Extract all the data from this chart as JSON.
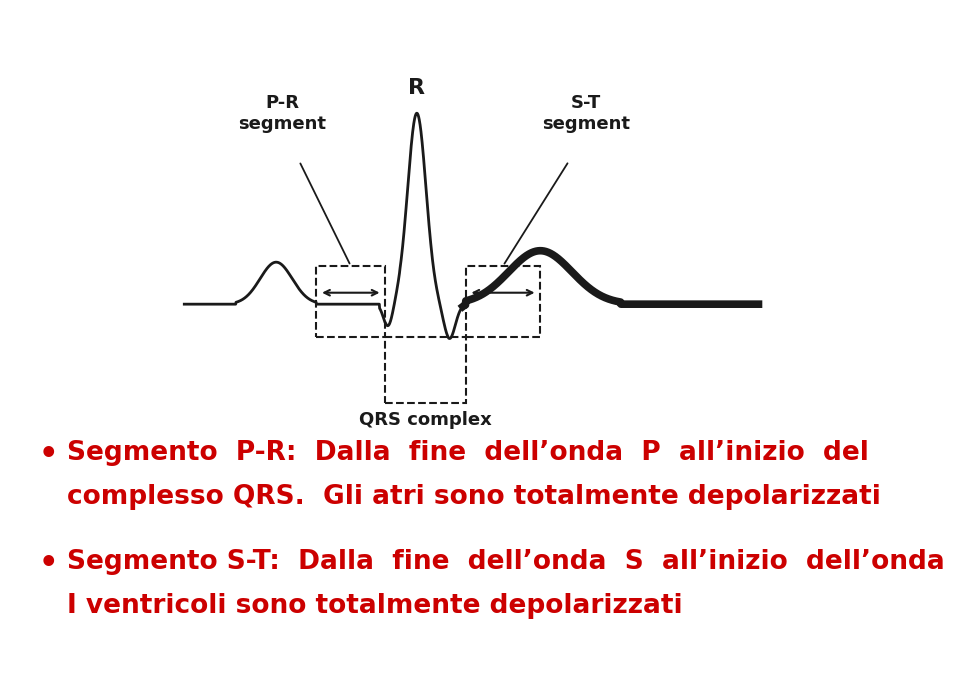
{
  "bg_color": "#ffffff",
  "ecg_color": "#1a1a1a",
  "text_color_red": "#cc0000",
  "line1": "Segmento  P-R:  Dalla  fine  dell’onda  P  all’inizio  del",
  "line2": "complesso QRS.  Gli atri sono totalmente depolarizzati",
  "line3": "Segmento S-T:  Dalla  fine  dell’onda  S  all’inizio  dell’onda  T.",
  "line4": "I ventricoli sono totalmente depolarizzati",
  "label_PR": "P-R\nsegment",
  "label_ST": "S-T\nsegment",
  "label_QRS": "QRS complex",
  "label_R": "R",
  "fs_ecg": 13,
  "fs_body": 19
}
